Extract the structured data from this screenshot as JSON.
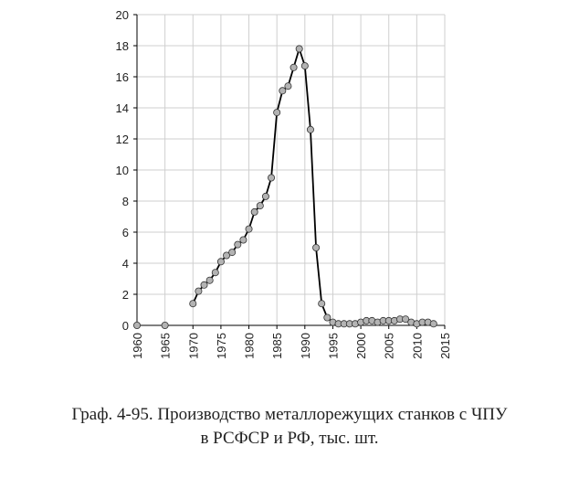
{
  "caption": {
    "line1": "Граф. 4-95. Производство металлорежущих станков с ЧПУ",
    "line2": "в РСФСР и РФ, тыс. шт."
  },
  "colors": {
    "line": "#000000",
    "marker_fill": "#b3b3b3",
    "grid": "#cfcfcf",
    "axis": "#000000"
  },
  "chart_data": {
    "type": "line",
    "title": "",
    "xlabel": "",
    "ylabel": "",
    "xlim": [
      1960,
      2015
    ],
    "ylim": [
      0,
      20
    ],
    "x_ticks": [
      "1960",
      "1965",
      "1970",
      "1975",
      "1980",
      "1985",
      "1990",
      "1995",
      "2000",
      "2005",
      "2010",
      "2015"
    ],
    "y_ticks": [
      "0",
      "2",
      "4",
      "6",
      "8",
      "10",
      "12",
      "14",
      "16",
      "18",
      "20"
    ],
    "grid": true,
    "legend": "none",
    "series": [
      {
        "marker": "circle",
        "x": [
          1960,
          1965
        ],
        "y": [
          0,
          0
        ],
        "connected": false
      },
      {
        "marker": "circle",
        "x": [
          1970,
          1971,
          1972,
          1973,
          1974,
          1975,
          1976,
          1977,
          1978,
          1979,
          1980,
          1981,
          1982,
          1983,
          1984,
          1985,
          1986,
          1987,
          1988,
          1989,
          1990,
          1991,
          1992,
          1993,
          1994,
          1995,
          1996,
          1997,
          1998,
          1999,
          2000,
          2001,
          2002,
          2003,
          2004,
          2005,
          2006,
          2007,
          2008,
          2009,
          2010,
          2011,
          2012,
          2013
        ],
        "y": [
          1.4,
          2.2,
          2.6,
          2.9,
          3.4,
          4.1,
          4.5,
          4.7,
          5.2,
          5.5,
          6.2,
          7.3,
          7.7,
          8.3,
          9.5,
          13.7,
          15.1,
          15.4,
          16.6,
          17.8,
          16.7,
          12.6,
          5.0,
          1.4,
          0.5,
          0.2,
          0.1,
          0.1,
          0.1,
          0.1,
          0.2,
          0.3,
          0.3,
          0.2,
          0.3,
          0.3,
          0.3,
          0.4,
          0.4,
          0.2,
          0.1,
          0.2,
          0.2,
          0.1
        ],
        "connected": true
      }
    ]
  }
}
